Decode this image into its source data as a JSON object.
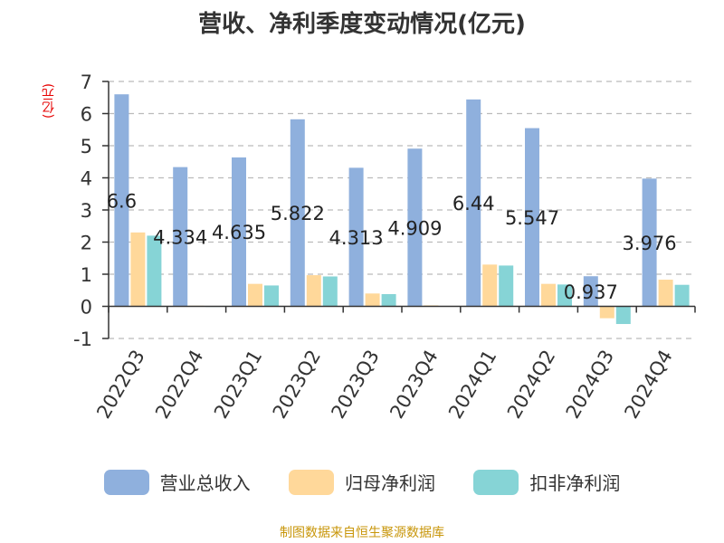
{
  "title": "营收、净利季度变动情况(亿元)",
  "unit_label": "(亿元)",
  "source": "制图数据来自恒生聚源数据库",
  "colors": {
    "revenue": "#8fb0dd",
    "parent_net_profit": "#ffd89a",
    "deducted_net_profit": "#86d4d6",
    "axis": "#333333",
    "grid": "#bbbbbb",
    "title": "#333333",
    "unit": "#e60000",
    "source": "#c8960a"
  },
  "chart_data": {
    "type": "bar",
    "title": "营收、净利季度变动情况(亿元)",
    "ylabel": "(亿元)",
    "xlabel": "",
    "ylim": [
      -1,
      7
    ],
    "yticks": [
      -1,
      0,
      1,
      2,
      3,
      4,
      5,
      6,
      7
    ],
    "grid": true,
    "legend_position": "bottom",
    "categories": [
      "2022Q3",
      "2022Q4",
      "2023Q1",
      "2023Q2",
      "2023Q3",
      "2023Q4",
      "2024Q1",
      "2024Q2",
      "2024Q3",
      "2024Q4"
    ],
    "series": [
      {
        "name": "营业总收入",
        "values": [
          6.6,
          4.334,
          4.635,
          5.822,
          4.313,
          4.909,
          6.44,
          5.547,
          0.937,
          3.976
        ],
        "data_labels": [
          "6.6",
          "4.334",
          "4.635",
          "5.822",
          "4.313",
          "4.909",
          "6.44",
          "5.547",
          "0.937",
          "3.976"
        ]
      },
      {
        "name": "归母净利润",
        "values": [
          2.3,
          0.02,
          0.7,
          0.97,
          0.4,
          0.03,
          1.3,
          0.7,
          -0.37,
          0.83
        ]
      },
      {
        "name": "扣非净利润",
        "values": [
          2.2,
          0.01,
          0.65,
          0.93,
          0.38,
          0.0,
          1.27,
          0.68,
          -0.55,
          0.67
        ]
      }
    ]
  }
}
